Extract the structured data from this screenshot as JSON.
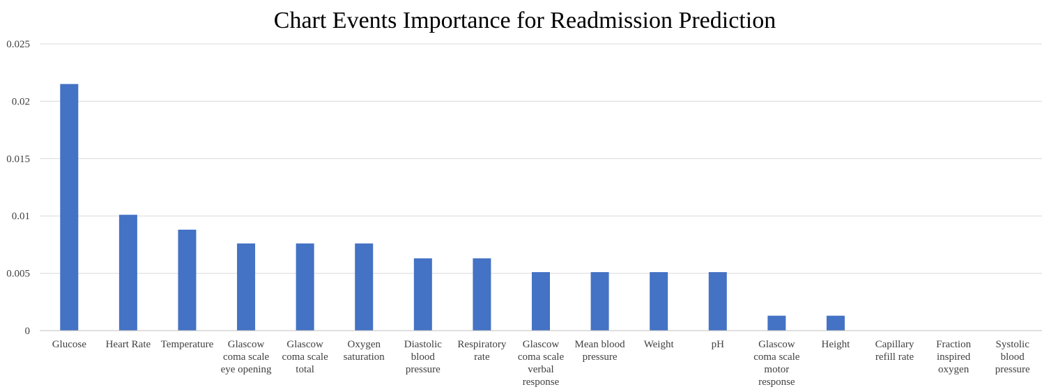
{
  "chart_data": {
    "type": "bar",
    "title": "Chart Events Importance for Readmission Prediction",
    "xlabel": "",
    "ylabel": "",
    "ylim": [
      0,
      0.025
    ],
    "yticks": [
      "0",
      "0.005",
      "0.01",
      "0.015",
      "0.02",
      "0.025"
    ],
    "grid": true,
    "legend": "none",
    "bar_color": "#4472c4",
    "categories": [
      "Glucose",
      "Heart Rate",
      "Temperature",
      "Glascow coma scale eye opening",
      "Glascow coma scale total",
      "Oxygen saturation",
      "Diastolic blood pressure",
      "Respiratory rate",
      "Glascow coma scale verbal response",
      "Mean blood pressure",
      "Weight",
      "pH",
      "Glascow coma scale motor response",
      "Height",
      "Capillary refill rate",
      "Fraction inspired oxygen",
      "Systolic blood pressure"
    ],
    "values": [
      0.0215,
      0.0101,
      0.0088,
      0.0076,
      0.0076,
      0.0076,
      0.0063,
      0.0063,
      0.0051,
      0.0051,
      0.0051,
      0.0051,
      0.0013,
      0.0013,
      0,
      0,
      0
    ]
  }
}
